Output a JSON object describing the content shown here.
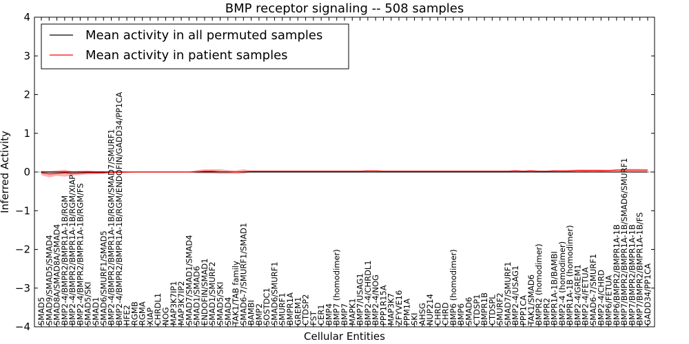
{
  "chart_data": {
    "type": "line",
    "title": "BMP receptor signaling -- 508 samples",
    "xlabel": "Cellular Entities",
    "ylabel": "Inferred Activity",
    "ylim": [
      -4,
      4
    ],
    "yticks": [
      4,
      3,
      2,
      1,
      0,
      -1,
      -2,
      -3,
      -4
    ],
    "ytick_labels": [
      "4",
      "3",
      "2",
      "1",
      "0",
      "−1",
      "−2",
      "−3",
      "−4"
    ],
    "legend": {
      "position": "top-left",
      "entries": [
        {
          "label": "Mean activity in all permuted samples",
          "color": "#000000"
        },
        {
          "label": "Mean activity in patient samples",
          "color": "#ff0000"
        }
      ]
    },
    "categories": [
      "SMAD5",
      "SMAD9/SMAD5/SMAD4",
      "SMAD8A/SMAD8A/SMAD4",
      "BMP2-4/BMPR2/BMPR1A-1B/RGM",
      "BMP2-4/BMPR2/BMPR1A-1B/RGM/XIAP",
      "BMP2-4/BMPR2/BMPR1A-1B/RGM/FS",
      "SMAD5/SKI",
      "SMAD1",
      "SMAD6/SMURF1/SMAD5",
      "BMP2-4/BMPR2/BMPR1A-1B/RGM/SMAD7/SMURF1",
      "BMP2-4/BMPR2/BMPR1A-1B/RGM/ENDOFIN/GADD34/PP1CA",
      "HFE2",
      "RGMB",
      "RGMA",
      "XIAP",
      "CHRDL1",
      "NOG",
      "MAP3K7IP1",
      "MAP3K7IP2",
      "SMAD7/SMAD1/SMAD4",
      "SMAD1/SMAD6",
      "ENDOFIN/SMAD1",
      "SMAD1/SMURF2",
      "SMAD5/SKI",
      "SMAD4",
      "TAK1/TAB family",
      "SMAD6-7/SMURF1/SMAD1",
      "BAMBI",
      "BMP2",
      "SOSTDC1",
      "SMAD6/SMURF1",
      "SMURF1",
      "BMPR1A",
      "GREM1",
      "CTDSP2",
      "FST",
      "CER1",
      "BMP4",
      "BMP7 (homodimer)",
      "BMP7",
      "MAPK1",
      "BMP7/USAG1",
      "BMP2-4/CHRDL1",
      "BMP2-4/NOG",
      "PPP1R15A",
      "MAP3K7",
      "ZFYVE16",
      "PPM1A",
      "SKI",
      "AHSG",
      "NUP214",
      "CHRD",
      "CHRD",
      "BMP6 (homodimer)",
      "BMP6",
      "SMAD6",
      "CTDSP1",
      "BMPR1B",
      "CTDSPL",
      "SMURF2",
      "SMAD7/SMURF1",
      "BMP2-4/USAG1",
      "PPP1CA",
      "TAK1/SMAD6",
      "BMPR2 (homodimer)",
      "BMPR2",
      "BMPR1A-1B/BAMBI",
      "BMP2-4 (homodimer)",
      "BMPR1A-1B (homodimer)",
      "BMP2-4/GREM1",
      "BMP2-4/FETUA",
      "SMAD6-7/SMURF1",
      "BMP2-4/CHRD",
      "BMP6/FETUA",
      "BMP6/BMPR2/BMPR1A-1B",
      "BMP7/BMPR2/BMPR1A-1B/SMAD6/SMURF1",
      "BMP7/BMPR2/BMPR1A-1B",
      "BMP7/BMPR2/BMPR1A-1B/FS",
      "GADD34/PP1CA"
    ],
    "series": [
      {
        "name": "Mean activity in all permuted samples",
        "color": "#000000",
        "values": [
          0,
          0,
          0,
          0,
          0,
          0,
          0,
          0,
          0,
          0,
          0,
          0,
          0,
          0,
          0,
          0,
          0,
          0,
          0,
          0,
          0,
          0,
          0,
          0,
          0,
          0,
          0,
          0,
          0,
          0,
          0,
          0,
          0,
          0,
          0,
          0,
          0,
          0,
          0,
          0,
          0,
          0,
          0,
          0,
          0,
          0,
          0,
          0,
          0,
          0,
          0,
          0,
          0,
          0,
          0,
          0,
          0,
          0,
          0,
          0,
          0,
          0,
          0,
          0,
          0,
          0,
          0,
          0,
          0,
          0,
          0,
          0,
          0,
          0,
          0,
          0,
          0,
          0,
          0
        ]
      },
      {
        "name": "Mean activity in patient samples",
        "color": "#ff0000",
        "values": [
          -0.02,
          -0.05,
          -0.04,
          -0.02,
          -0.04,
          -0.03,
          -0.02,
          -0.02,
          -0.02,
          -0.01,
          -0.01,
          -0.005,
          0,
          0,
          0,
          0,
          0,
          0,
          0,
          0,
          0.01,
          0.02,
          0.02,
          0.01,
          0.01,
          0,
          0.01,
          0.02,
          0.02,
          0.02,
          0.02,
          0.02,
          0.02,
          0.02,
          0.02,
          0.02,
          0.02,
          0.02,
          0.02,
          0.02,
          0.02,
          0.02,
          0.03,
          0.03,
          0.02,
          0.02,
          0.02,
          0.02,
          0.02,
          0.02,
          0.02,
          0.02,
          0.02,
          0.02,
          0.02,
          0.02,
          0.02,
          0.02,
          0.02,
          0.02,
          0.02,
          0.03,
          0.02,
          0.03,
          0.02,
          0.02,
          0.03,
          0.03,
          0.03,
          0.04,
          0.04,
          0.04,
          0.04,
          0.04,
          0.05,
          0.05,
          0.05,
          0.05,
          0.05
        ],
        "band_upper": [
          0.03,
          0.02,
          0.04,
          0.06,
          0.02,
          0.03,
          0.04,
          0.02,
          0.02,
          0.01,
          0.01,
          0.005,
          0.005,
          0.005,
          0.005,
          0.005,
          0.005,
          0.005,
          0.005,
          0.005,
          0.05,
          0.07,
          0.07,
          0.07,
          0.05,
          0.04,
          0.07,
          0.03,
          0.03,
          0.03,
          0.03,
          0.03,
          0.03,
          0.03,
          0.03,
          0.03,
          0.03,
          0.03,
          0.03,
          0.03,
          0.03,
          0.03,
          0.04,
          0.04,
          0.03,
          0.03,
          0.03,
          0.03,
          0.03,
          0.03,
          0.03,
          0.03,
          0.03,
          0.03,
          0.03,
          0.03,
          0.03,
          0.03,
          0.03,
          0.03,
          0.03,
          0.05,
          0.03,
          0.05,
          0.03,
          0.03,
          0.05,
          0.04,
          0.05,
          0.06,
          0.06,
          0.06,
          0.06,
          0.05,
          0.07,
          0.08,
          0.08,
          0.08,
          0.07
        ],
        "band_lower": [
          -0.08,
          -0.14,
          -0.1,
          -0.12,
          -0.09,
          -0.08,
          -0.06,
          -0.06,
          -0.05,
          -0.02,
          -0.02,
          -0.01,
          -0.005,
          -0.005,
          -0.005,
          -0.005,
          -0.005,
          -0.005,
          -0.005,
          -0.01,
          -0.03,
          -0.04,
          -0.04,
          -0.05,
          -0.05,
          -0.05,
          -0.04,
          0,
          0,
          0,
          0,
          0,
          0,
          0,
          0,
          0,
          0,
          0,
          0,
          0,
          0,
          0,
          0.01,
          0.01,
          0,
          0,
          0,
          0,
          0,
          0,
          0,
          0,
          0,
          0,
          0,
          0,
          0,
          0,
          0,
          0,
          0,
          0,
          0,
          0,
          0,
          0,
          0,
          0.01,
          0.01,
          0.02,
          0.01,
          0.02,
          0.01,
          0.02,
          0.02,
          0.02,
          0.02,
          0.02,
          0.02
        ]
      }
    ]
  }
}
